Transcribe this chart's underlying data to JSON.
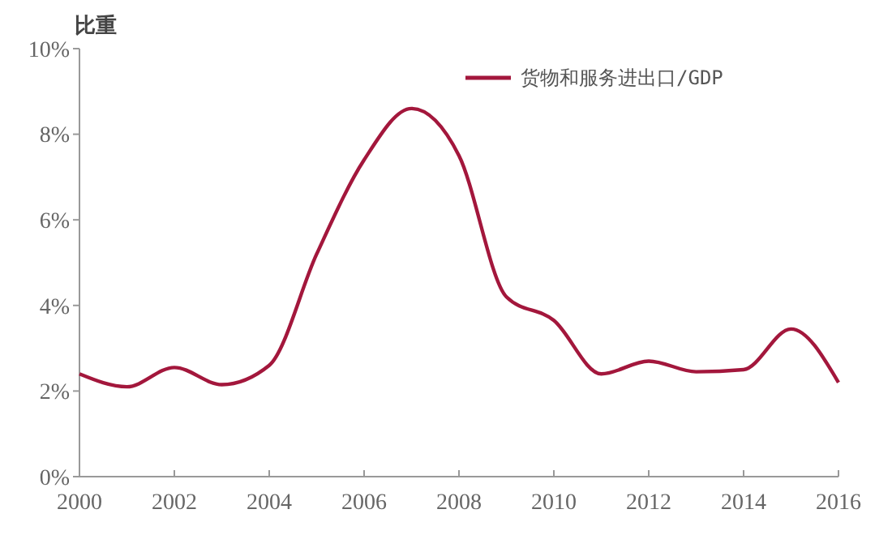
{
  "chart_data": {
    "type": "line",
    "ylabel": "比重",
    "x": [
      2000,
      2001,
      2002,
      2003,
      2004,
      2005,
      2006,
      2007,
      2008,
      2009,
      2010,
      2011,
      2012,
      2013,
      2014,
      2015,
      2016
    ],
    "series": [
      {
        "name": "货物和服务进出口/GDP",
        "color": "#a3173c",
        "values": [
          2.4,
          2.1,
          2.55,
          2.15,
          2.6,
          5.2,
          7.4,
          8.6,
          7.5,
          4.2,
          3.65,
          2.4,
          2.7,
          2.45,
          2.5,
          3.45,
          2.2
        ]
      }
    ],
    "xlim": [
      2000,
      2016
    ],
    "xticks": [
      2000,
      2002,
      2004,
      2006,
      2008,
      2010,
      2012,
      2014,
      2016
    ],
    "ylim": [
      0,
      10
    ],
    "yticks": [
      {
        "value": 0,
        "label": "0%"
      },
      {
        "value": 2,
        "label": "2%"
      },
      {
        "value": 4,
        "label": "4%"
      },
      {
        "value": 6,
        "label": "6%"
      },
      {
        "value": 8,
        "label": "8%"
      },
      {
        "value": 10,
        "label": "10%"
      }
    ],
    "grid": false,
    "legend": "top right",
    "marker": "none",
    "line_style": "solid"
  }
}
